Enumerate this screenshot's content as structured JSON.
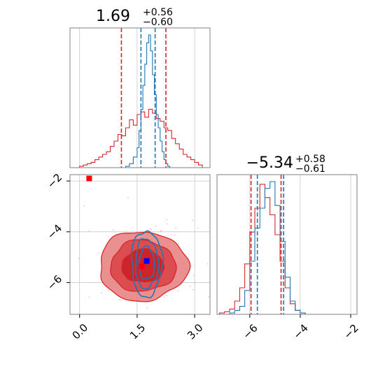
{
  "chart_data": [
    {
      "type": "histogram",
      "panel": "top-left",
      "title_main": "1.69",
      "title_sup": "+0.56",
      "title_sub": "−0.60",
      "xlim": [
        -0.25,
        3.4
      ],
      "grid": true,
      "series": [
        {
          "color": "#1f77b4",
          "edges": [
            0.0,
            0.1,
            0.2,
            0.3,
            0.4,
            0.5,
            0.6,
            0.7,
            0.8,
            0.9,
            1.0,
            1.1,
            1.2,
            1.3,
            1.4,
            1.5,
            1.55,
            1.6,
            1.65,
            1.7,
            1.75,
            1.8,
            1.85,
            1.9,
            1.95,
            2.0,
            2.05,
            2.1,
            2.15,
            2.2,
            2.25,
            2.3,
            2.35,
            2.4,
            2.5,
            2.6,
            2.7,
            2.8,
            2.9,
            3.0,
            3.1,
            3.2
          ],
          "counts": [
            0,
            0,
            0,
            0,
            0,
            0,
            0,
            0,
            0,
            0,
            0,
            0,
            1,
            3,
            8,
            15,
            28,
            44,
            62,
            78,
            94,
            100,
            88,
            70,
            55,
            40,
            30,
            20,
            12,
            6,
            3,
            1,
            0,
            0,
            0,
            0,
            0,
            0,
            0,
            0,
            0
          ],
          "ticks": [
            1.69,
            2.25,
            1.09
          ]
        },
        {
          "color": "#d62728",
          "edges": [
            0.0,
            0.1,
            0.2,
            0.3,
            0.4,
            0.5,
            0.6,
            0.7,
            0.8,
            0.9,
            1.0,
            1.1,
            1.2,
            1.3,
            1.4,
            1.5,
            1.6,
            1.7,
            1.8,
            1.9,
            2.0,
            2.1,
            2.2,
            2.3,
            2.4,
            2.5,
            2.6,
            2.7,
            2.8,
            2.9,
            3.0,
            3.1,
            3.2
          ],
          "counts": [
            1,
            2,
            3,
            4,
            6,
            8,
            10,
            12,
            16,
            20,
            25,
            24,
            30,
            36,
            32,
            40,
            42,
            38,
            44,
            41,
            37,
            35,
            30,
            28,
            22,
            18,
            14,
            10,
            8,
            6,
            4,
            2
          ],
          "ticks": [
            1.09,
            2.25
          ]
        }
      ],
      "quantile_lines": [
        {
          "value": 1.09,
          "color": "#d62728"
        },
        {
          "value": 2.25,
          "color": "#d62728"
        },
        {
          "value": 1.6,
          "color": "#1f77b4"
        },
        {
          "value": 1.97,
          "color": "#1f77b4"
        }
      ]
    },
    {
      "type": "contour",
      "panel": "bottom-left",
      "xlim": [
        -0.25,
        3.4
      ],
      "ylim": [
        -7.25,
        -1.75
      ],
      "xticks": [
        0.0,
        1.5,
        3.0
      ],
      "xtick_labels": [
        "0.0",
        "1.5",
        "3.0"
      ],
      "yticks": [
        -2,
        -4,
        -6
      ],
      "ytick_labels": [
        "−2",
        "−4",
        "−6"
      ],
      "grid": true,
      "red_contours": {
        "center": [
          1.65,
          -5.35
        ],
        "sigma": [
          0.55,
          0.65
        ],
        "levels": [
          1.0,
          1.55,
          2.1
        ],
        "fills": [
          "#e87d7e",
          "#d94245",
          "#c81d23"
        ]
      },
      "blue_contours": {
        "center": [
          1.75,
          -5.25
        ],
        "sigma": [
          0.2,
          0.65
        ],
        "levels": [
          1.0,
          1.5,
          2.0
        ],
        "color": "#1f77b4"
      },
      "markers": [
        {
          "x": 0.25,
          "y": -1.9,
          "color": "#ff0000"
        },
        {
          "x": 1.75,
          "y": -5.15,
          "color": "#0000ff"
        }
      ]
    },
    {
      "type": "histogram",
      "panel": "bottom-right",
      "title_main": "−5.34",
      "title_sup": "+0.58",
      "title_sub": "−0.61",
      "xlim": [
        -7.3,
        -1.75
      ],
      "xticks": [
        -6,
        -4,
        -2
      ],
      "xtick_labels": [
        "−6",
        "−4",
        "−2"
      ],
      "grid": true,
      "series": [
        {
          "color": "#1f77b4",
          "edges": [
            -7.0,
            -6.8,
            -6.6,
            -6.4,
            -6.2,
            -6.0,
            -5.8,
            -5.6,
            -5.4,
            -5.2,
            -5.0,
            -4.8,
            -4.6,
            -4.4,
            -4.2,
            -4.0,
            -3.8
          ],
          "counts": [
            0,
            1,
            3,
            6,
            18,
            40,
            65,
            80,
            95,
            100,
            82,
            55,
            28,
            10,
            3,
            1
          ]
        },
        {
          "color": "#d62728",
          "edges": [
            -7.2,
            -7.0,
            -6.8,
            -6.6,
            -6.4,
            -6.2,
            -6.0,
            -5.8,
            -5.6,
            -5.4,
            -5.2,
            -5.0,
            -4.8,
            -4.6,
            -4.4,
            -4.2,
            -4.0,
            -3.8
          ],
          "counts": [
            1,
            2,
            4,
            10,
            20,
            38,
            62,
            80,
            98,
            88,
            75,
            60,
            40,
            20,
            8,
            3,
            1
          ]
        }
      ],
      "quantile_lines": [
        {
          "value": -5.95,
          "color": "#d62728"
        },
        {
          "value": -4.76,
          "color": "#d62728"
        },
        {
          "value": -5.7,
          "color": "#1f77b4"
        },
        {
          "value": -4.66,
          "color": "#1f77b4"
        }
      ]
    }
  ],
  "colors": {
    "blue": "#1f77b4",
    "red": "#d62728",
    "marker_red": "#ff0000",
    "marker_blue": "#0000ff",
    "grid": "#c8c8c8",
    "axes": "#808080"
  }
}
